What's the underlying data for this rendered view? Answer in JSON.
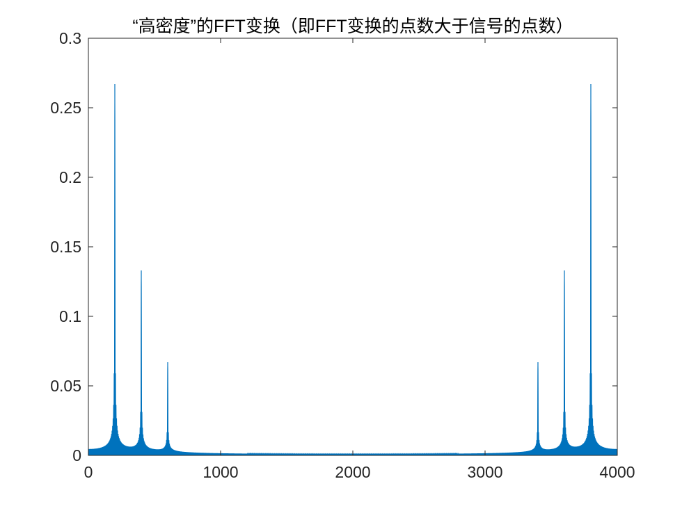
{
  "chart_data": {
    "type": "line",
    "title": "“高密度”的FFT变换（即FFT变换的点数大于信号的点数）",
    "xlabel": "",
    "ylabel": "",
    "xlim": [
      0,
      4000
    ],
    "ylim": [
      0,
      0.3
    ],
    "xticks": [
      0,
      1000,
      2000,
      3000,
      4000
    ],
    "xtick_labels": [
      "0",
      "1000",
      "2000",
      "3000",
      "4000"
    ],
    "yticks": [
      0,
      0.05,
      0.1,
      0.15,
      0.2,
      0.25,
      0.3
    ],
    "ytick_labels": [
      "0",
      "0.05",
      "0.1",
      "0.15",
      "0.2",
      "0.25",
      "0.3"
    ],
    "grid": false,
    "line_color": "#0072BD",
    "peaks": [
      {
        "x": 200,
        "y": 0.267
      },
      {
        "x": 400,
        "y": 0.133
      },
      {
        "x": 600,
        "y": 0.067
      },
      {
        "x": 3400,
        "y": 0.067
      },
      {
        "x": 3600,
        "y": 0.133
      },
      {
        "x": 3800,
        "y": 0.267
      }
    ],
    "n_points": 4000
  }
}
